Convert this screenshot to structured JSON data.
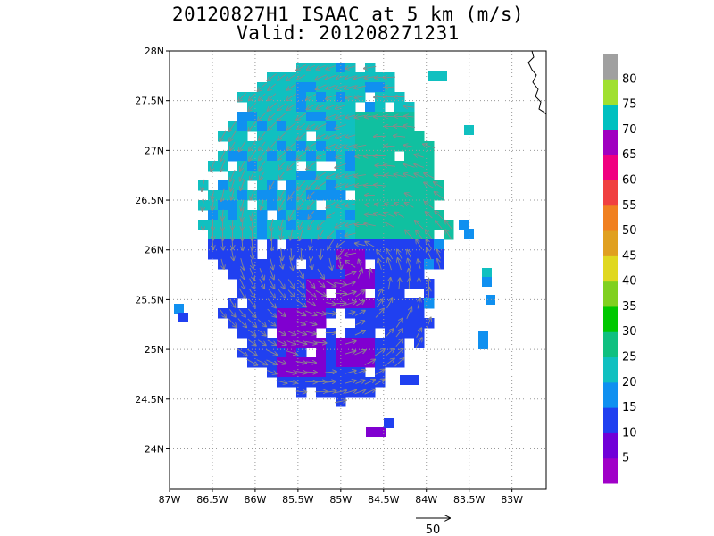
{
  "title": {
    "line1": "20120827H1 ISAAC at 5 km (m/s)",
    "line2": "Valid: 201208271231"
  },
  "map": {
    "lon_range": [
      -87.0,
      -82.6
    ],
    "lat_range": [
      23.6,
      28.0
    ],
    "lon_ticks": [
      {
        "value": -87.0,
        "label": "87W"
      },
      {
        "value": -86.5,
        "label": "86.5W"
      },
      {
        "value": -86.0,
        "label": "86W"
      },
      {
        "value": -85.5,
        "label": "85.5W"
      },
      {
        "value": -85.0,
        "label": "85W"
      },
      {
        "value": -84.5,
        "label": "84.5W"
      },
      {
        "value": -84.0,
        "label": "84W"
      },
      {
        "value": -83.5,
        "label": "83.5W"
      },
      {
        "value": -83.0,
        "label": "83W"
      }
    ],
    "lat_ticks": [
      {
        "value": 24.0,
        "label": "24N"
      },
      {
        "value": 24.5,
        "label": "24.5N"
      },
      {
        "value": 25.0,
        "label": "25N"
      },
      {
        "value": 25.5,
        "label": "25.5N"
      },
      {
        "value": 26.0,
        "label": "26N"
      },
      {
        "value": 26.5,
        "label": "26.5N"
      },
      {
        "value": 27.0,
        "label": "27N"
      },
      {
        "value": 27.5,
        "label": "27.5N"
      },
      {
        "value": 28.0,
        "label": "28N"
      }
    ],
    "storm_center": {
      "lon": -84.9,
      "lat": 25.85
    },
    "grid": "dotted"
  },
  "colorbar": {
    "labels": [
      "5",
      "10",
      "15",
      "20",
      "25",
      "30",
      "35",
      "40",
      "45",
      "50",
      "55",
      "60",
      "65",
      "70",
      "75",
      "80"
    ],
    "colors": [
      "#a000c8",
      "#7000d8",
      "#2040f0",
      "#1090f0",
      "#10c0c0",
      "#10c080",
      "#00c800",
      "#80d020",
      "#e0d820",
      "#e0a020",
      "#f08020",
      "#f04040",
      "#f00080",
      "#a000c0",
      "#00c0c0",
      "#a0e030",
      "#a0a0a0"
    ]
  },
  "reference_vector": {
    "label": "50"
  },
  "chart_data": {
    "type": "heatmap",
    "title": "20120827H1 ISAAC at 5 km (m/s)",
    "subtitle": "Valid: 201208271231",
    "xlabel": "",
    "ylabel": "",
    "xlim": [
      -87.0,
      -82.6
    ],
    "ylim": [
      23.6,
      28.0
    ],
    "colorscale_labels": [
      "5",
      "10",
      "15",
      "20",
      "25",
      "30",
      "35",
      "40",
      "45",
      "50",
      "55",
      "60",
      "65",
      "70",
      "75",
      "80"
    ],
    "regions": [
      {
        "name": "",
        "level": "20-25",
        "lon": [
          -86.5,
          -84.0
        ],
        "lat": [
          26.3,
          27.7
        ]
      },
      {
        "name": "",
        "level": "25-30",
        "lon": [
          -85.3,
          -84.0
        ],
        "lat": [
          26.2,
          27.5
        ]
      },
      {
        "name": "",
        "level": "10-15",
        "lon": [
          -86.5,
          -84.0
        ],
        "lat": [
          24.5,
          26.1
        ]
      },
      {
        "name": "",
        "level": "5-10",
        "lon": [
          -85.7,
          -84.7
        ],
        "lat": [
          24.6,
          25.9
        ]
      }
    ]
  }
}
